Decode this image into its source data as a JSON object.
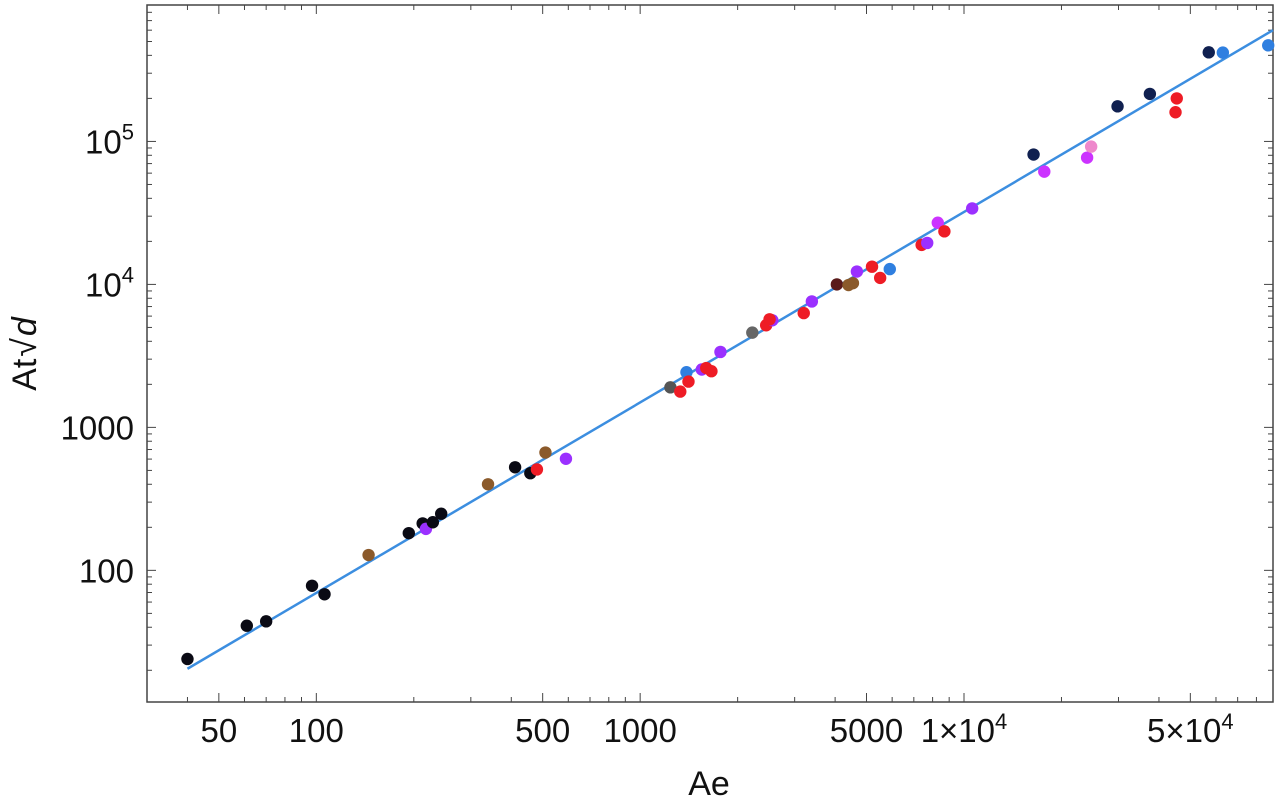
{
  "chart_data": {
    "type": "scatter",
    "title": "",
    "xlabel": "Ae",
    "ylabel_parts": {
      "prefix": "At",
      "radical": "√",
      "var": "d"
    },
    "xscale": "log",
    "yscale": "log",
    "xlim": [
      30,
      90000
    ],
    "ylim": [
      12,
      900000
    ],
    "grid": false,
    "x_ticks": [
      {
        "value": 50,
        "label": "50"
      },
      {
        "value": 100,
        "label": "100"
      },
      {
        "value": 500,
        "label": "500"
      },
      {
        "value": 1000,
        "label": "1000"
      },
      {
        "value": 5000,
        "label": "5000"
      },
      {
        "value": 10000,
        "label": "1×10",
        "exp": "4"
      },
      {
        "value": 50000,
        "label": "5×10",
        "exp": "4"
      }
    ],
    "y_ticks": [
      {
        "value": 100,
        "label": "100"
      },
      {
        "value": 1000,
        "label": "1000"
      },
      {
        "value": 10000,
        "label": "10",
        "exp": "4"
      },
      {
        "value": 100000,
        "label": "10",
        "exp": "5"
      }
    ],
    "fit_line": {
      "x": [
        40,
        90000
      ],
      "y": [
        20.5,
        600000
      ],
      "color": "#3c8ee0"
    },
    "points": [
      {
        "x": 40,
        "y": 24,
        "color": "#0a0a14"
      },
      {
        "x": 61,
        "y": 41,
        "color": "#0a0a14"
      },
      {
        "x": 70,
        "y": 44,
        "color": "#0a0a14"
      },
      {
        "x": 97,
        "y": 78,
        "color": "#0a0a14"
      },
      {
        "x": 106,
        "y": 68,
        "color": "#0a0a14"
      },
      {
        "x": 145,
        "y": 128,
        "color": "#8b5a2b"
      },
      {
        "x": 193,
        "y": 182,
        "color": "#0a0a14"
      },
      {
        "x": 213,
        "y": 213,
        "color": "#0a0a14"
      },
      {
        "x": 218,
        "y": 195,
        "color": "#9b30ff"
      },
      {
        "x": 229,
        "y": 217,
        "color": "#0a0a14"
      },
      {
        "x": 243,
        "y": 249,
        "color": "#0a0a14"
      },
      {
        "x": 339,
        "y": 400,
        "color": "#8b5a2b"
      },
      {
        "x": 411,
        "y": 526,
        "color": "#0a0a14"
      },
      {
        "x": 458,
        "y": 478,
        "color": "#0a0a14"
      },
      {
        "x": 480,
        "y": 508,
        "color": "#ee1c25"
      },
      {
        "x": 510,
        "y": 667,
        "color": "#8b5a2b"
      },
      {
        "x": 590,
        "y": 603,
        "color": "#9b30ff"
      },
      {
        "x": 1240,
        "y": 1905,
        "color": "#555555"
      },
      {
        "x": 1330,
        "y": 1780,
        "color": "#ee1c25"
      },
      {
        "x": 1390,
        "y": 2430,
        "color": "#2f7fe0"
      },
      {
        "x": 1410,
        "y": 2090,
        "color": "#ee1c25"
      },
      {
        "x": 1550,
        "y": 2540,
        "color": "#9b30ff"
      },
      {
        "x": 1600,
        "y": 2600,
        "color": "#ee1c25"
      },
      {
        "x": 1660,
        "y": 2470,
        "color": "#ee1c25"
      },
      {
        "x": 1770,
        "y": 3370,
        "color": "#9b30ff"
      },
      {
        "x": 2220,
        "y": 4600,
        "color": "#666666"
      },
      {
        "x": 2450,
        "y": 5180,
        "color": "#ee1c25"
      },
      {
        "x": 2560,
        "y": 5610,
        "color": "#9b30ff"
      },
      {
        "x": 2510,
        "y": 5700,
        "color": "#ee1c25"
      },
      {
        "x": 3200,
        "y": 6300,
        "color": "#ee1c25"
      },
      {
        "x": 3390,
        "y": 7600,
        "color": "#9b30ff"
      },
      {
        "x": 4050,
        "y": 10000,
        "color": "#5a1a1a"
      },
      {
        "x": 4400,
        "y": 9900,
        "color": "#8b5a2b"
      },
      {
        "x": 4540,
        "y": 10200,
        "color": "#8b5a2b"
      },
      {
        "x": 4670,
        "y": 12300,
        "color": "#9b30ff"
      },
      {
        "x": 5200,
        "y": 13300,
        "color": "#ee1c25"
      },
      {
        "x": 5510,
        "y": 11100,
        "color": "#ee1c25"
      },
      {
        "x": 5900,
        "y": 12800,
        "color": "#2f7fe0"
      },
      {
        "x": 7400,
        "y": 18900,
        "color": "#ee1c25"
      },
      {
        "x": 7700,
        "y": 19500,
        "color": "#9b30ff"
      },
      {
        "x": 8300,
        "y": 27000,
        "color": "#cc33ff"
      },
      {
        "x": 8700,
        "y": 23500,
        "color": "#ee1c25"
      },
      {
        "x": 10600,
        "y": 34000,
        "color": "#9b30ff"
      },
      {
        "x": 16400,
        "y": 81000,
        "color": "#102050"
      },
      {
        "x": 17700,
        "y": 61500,
        "color": "#cc33ff"
      },
      {
        "x": 24000,
        "y": 77000,
        "color": "#cc33ff"
      },
      {
        "x": 24700,
        "y": 92000,
        "color": "#ee88cc"
      },
      {
        "x": 29800,
        "y": 176000,
        "color": "#102050"
      },
      {
        "x": 37500,
        "y": 215000,
        "color": "#102050"
      },
      {
        "x": 45000,
        "y": 160000,
        "color": "#ee1c25"
      },
      {
        "x": 45400,
        "y": 200000,
        "color": "#ee1c25"
      },
      {
        "x": 57000,
        "y": 420000,
        "color": "#102050"
      },
      {
        "x": 63000,
        "y": 418000,
        "color": "#2f7fe0"
      },
      {
        "x": 87000,
        "y": 470000,
        "color": "#2f7fe0"
      }
    ]
  }
}
